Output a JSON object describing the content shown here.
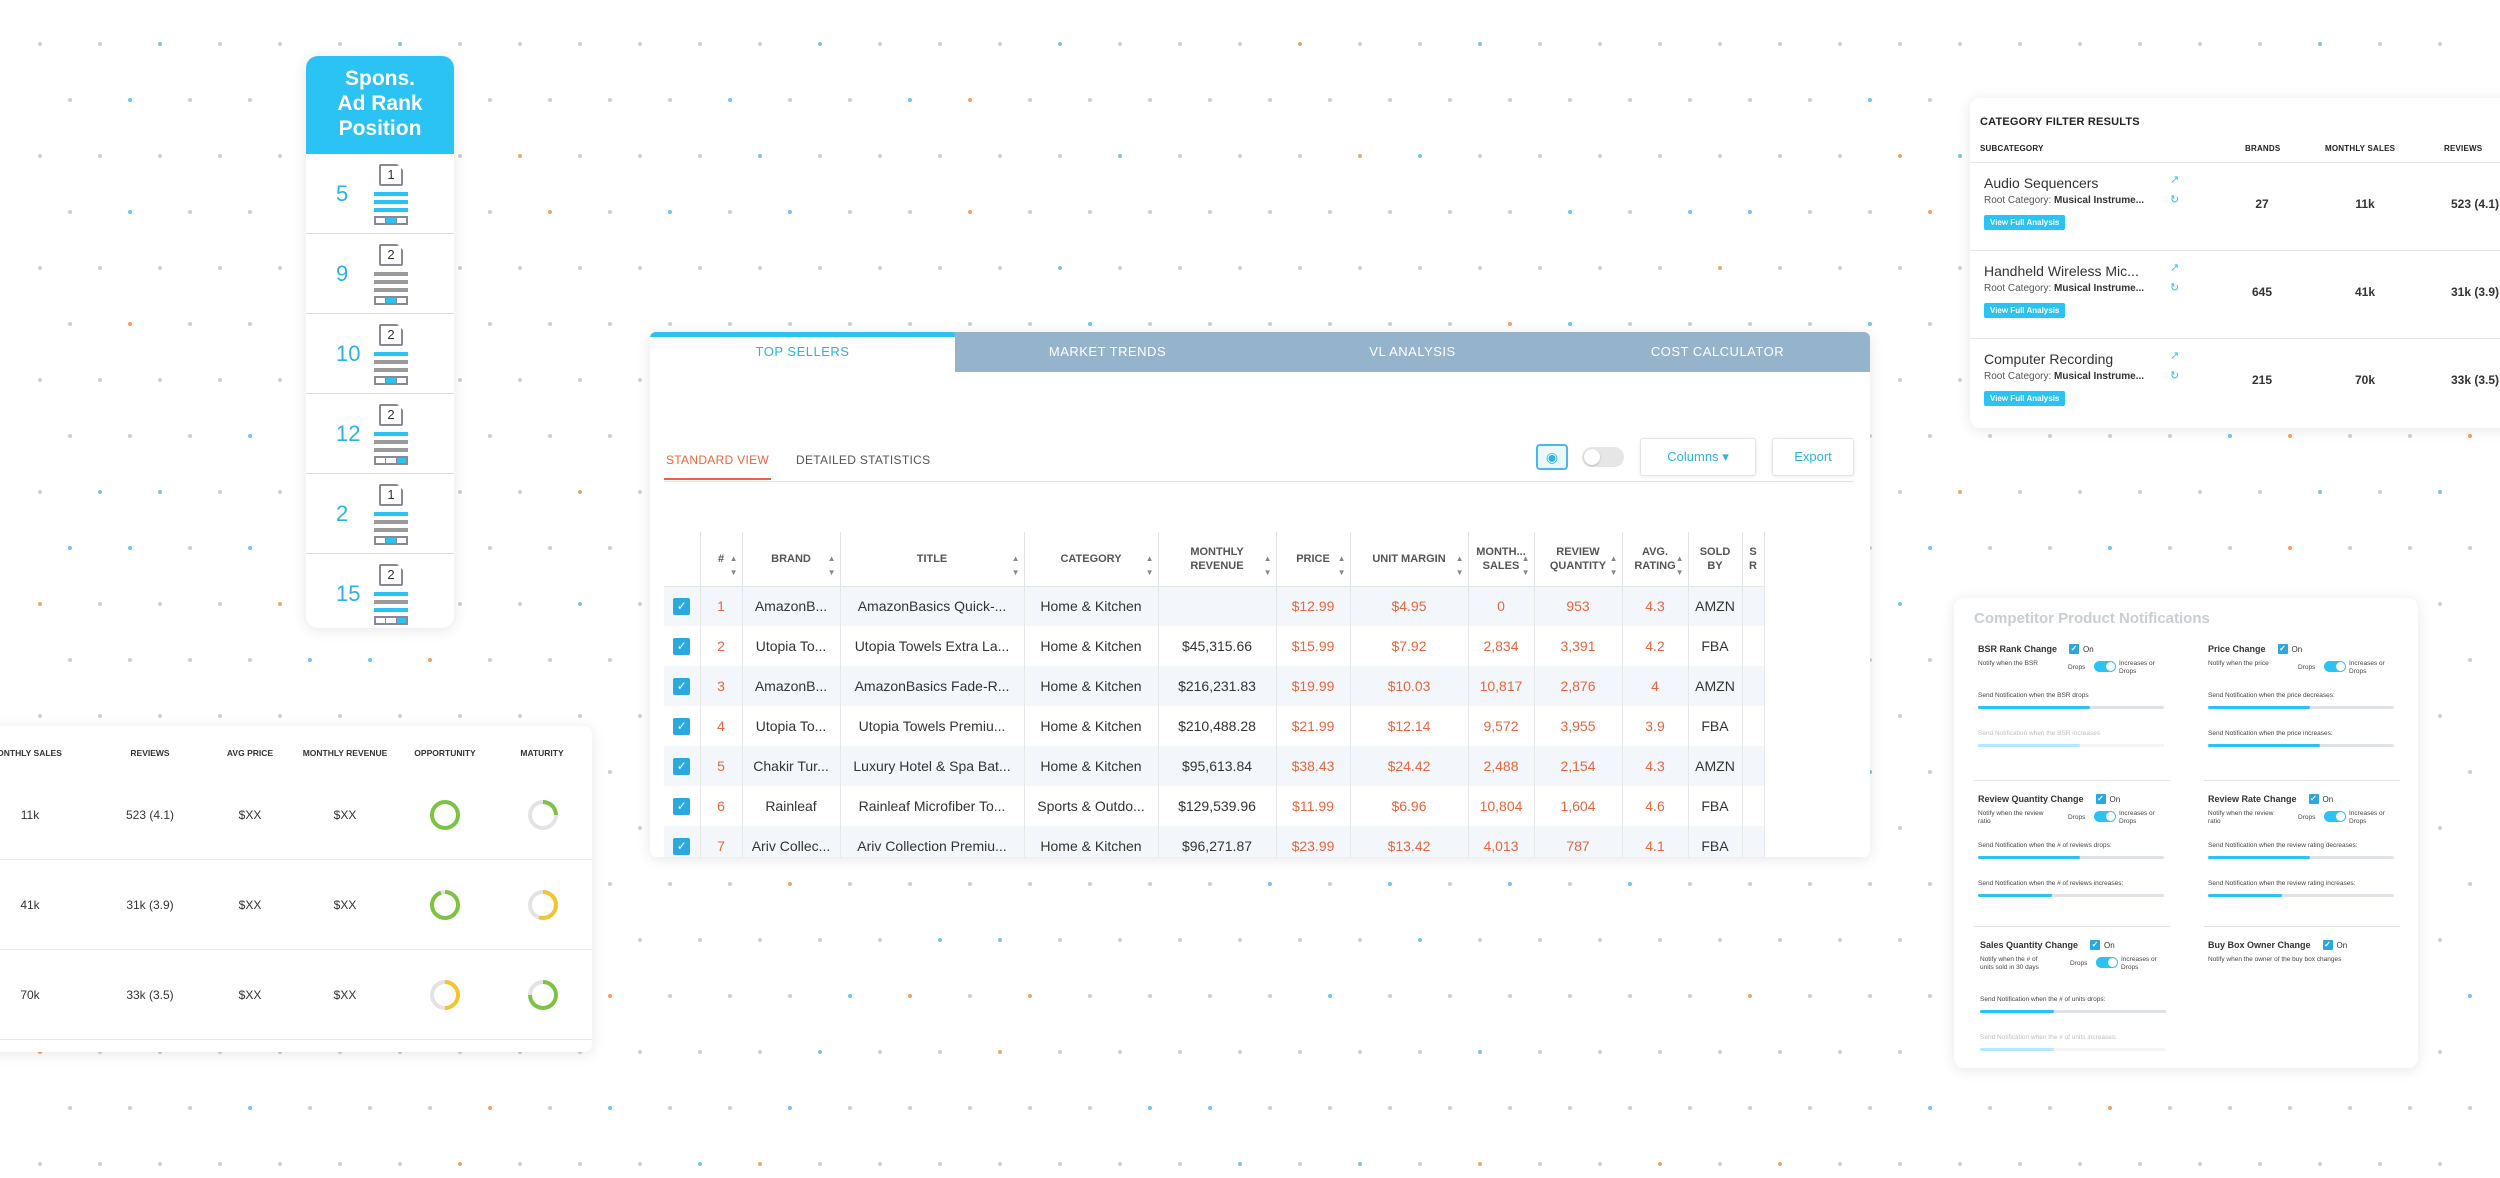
{
  "ad_rank": {
    "title_line1": "Spons.",
    "title_line2": "Ad Rank",
    "title_line3": "Position",
    "rows": [
      {
        "rank": "5",
        "page": "1",
        "lines_blue": [
          0,
          1,
          2
        ],
        "box_fill": 1
      },
      {
        "rank": "9",
        "page": "2",
        "lines_blue": [],
        "box_fill": 1
      },
      {
        "rank": "10",
        "page": "2",
        "lines_blue": [
          0
        ],
        "box_fill": 1
      },
      {
        "rank": "12",
        "page": "2",
        "lines_blue": [
          0
        ],
        "box_fill": 2
      },
      {
        "rank": "2",
        "page": "1",
        "lines_blue": [
          0
        ],
        "box_fill": 1
      },
      {
        "rank": "15",
        "page": "2",
        "lines_blue": [
          0,
          2
        ],
        "box_fill": 2
      }
    ]
  },
  "category_filter": {
    "title": "CATEGORY FILTER RESULTS",
    "headers": {
      "subcategory": "SUBCATEGORY",
      "brands": "BRANDS",
      "monthly_sales": "MONTHLY SALES",
      "reviews": "REVIEWS"
    },
    "root_label": "Root Category:",
    "button_label": "View Full Analysis",
    "rows": [
      {
        "name": "Audio Sequencers",
        "root": "Musical Instrume...",
        "brands": "27",
        "sales": "11k",
        "reviews": "523 (4.1)"
      },
      {
        "name": "Handheld Wireless Mic...",
        "root": "Musical Instrume...",
        "brands": "645",
        "sales": "41k",
        "reviews": "31k (3.9)"
      },
      {
        "name": "Computer Recording",
        "root": "Musical Instrume...",
        "brands": "215",
        "sales": "70k",
        "reviews": "33k (3.5)"
      }
    ]
  },
  "left_table": {
    "headers": {
      "monthly_sales": "MONTHLY SALES",
      "reviews": "REVIEWS",
      "avg_price": "AVG PRICE",
      "monthly_revenue": "MONTHLY REVENUE",
      "opportunity": "OPPORTUNITY",
      "maturity": "MATURITY"
    },
    "rows": [
      {
        "sales": "11k",
        "reviews": "523 (4.1)",
        "price": "$XX",
        "revenue": "$XX",
        "opportunity_color": "#7cc243",
        "maturity_color": "#7cc243",
        "opportunity_level": 1.0,
        "maturity_level": 0.25
      },
      {
        "sales": "41k",
        "reviews": "31k (3.9)",
        "price": "$XX",
        "revenue": "$XX",
        "opportunity_color": "#7cc243",
        "maturity_color": "#f4c430",
        "opportunity_level": 0.95,
        "maturity_level": 0.55
      },
      {
        "sales": "70k",
        "reviews": "33k (3.5)",
        "price": "$XX",
        "revenue": "$XX",
        "opportunity_color": "#f4c430",
        "maturity_color": "#7cc243",
        "opportunity_level": 0.5,
        "maturity_level": 0.75
      }
    ]
  },
  "main": {
    "tabs": [
      "TOP SELLERS",
      "MARKET TRENDS",
      "VL ANALYSIS",
      "COST CALCULATOR"
    ],
    "active_tab": 0,
    "subtabs": {
      "standard": "STANDARD VIEW",
      "detailed": "DETAILED STATISTICS"
    },
    "columns_label": "Columns",
    "export_label": "Export",
    "headers": [
      "#",
      "BRAND",
      "TITLE",
      "CATEGORY",
      "MONTHLY REVENUE",
      "PRICE",
      "UNIT MARGIN",
      "MONTH... SALES",
      "REVIEW QUANTITY",
      "AVG. RATING",
      "SOLD BY",
      "S R"
    ],
    "rows": [
      {
        "n": "1",
        "brand": "AmazonB...",
        "title": "AmazonBasics Quick-...",
        "category": "Home & Kitchen",
        "revenue": "",
        "price": "$12.99",
        "margin": "$4.95",
        "sales": "0",
        "reviews": "953",
        "rating": "4.3",
        "sold_by": "AMZN"
      },
      {
        "n": "2",
        "brand": "Utopia To...",
        "title": "Utopia Towels Extra La...",
        "category": "Home & Kitchen",
        "revenue": "$45,315.66",
        "price": "$15.99",
        "margin": "$7.92",
        "sales": "2,834",
        "reviews": "3,391",
        "rating": "4.2",
        "sold_by": "FBA"
      },
      {
        "n": "3",
        "brand": "AmazonB...",
        "title": "AmazonBasics Fade-R...",
        "category": "Home & Kitchen",
        "revenue": "$216,231.83",
        "price": "$19.99",
        "margin": "$10.03",
        "sales": "10,817",
        "reviews": "2,876",
        "rating": "4",
        "sold_by": "AMZN"
      },
      {
        "n": "4",
        "brand": "Utopia To...",
        "title": "Utopia Towels Premiu...",
        "category": "Home & Kitchen",
        "revenue": "$210,488.28",
        "price": "$21.99",
        "margin": "$12.14",
        "sales": "9,572",
        "reviews": "3,955",
        "rating": "3.9",
        "sold_by": "FBA"
      },
      {
        "n": "5",
        "brand": "Chakir Tur...",
        "title": "Luxury Hotel & Spa Bat...",
        "category": "Home & Kitchen",
        "revenue": "$95,613.84",
        "price": "$38.43",
        "margin": "$24.42",
        "sales": "2,488",
        "reviews": "2,154",
        "rating": "4.3",
        "sold_by": "AMZN"
      },
      {
        "n": "6",
        "brand": "Rainleaf",
        "title": "Rainleaf Microfiber To...",
        "category": "Sports & Outdo...",
        "revenue": "$129,539.96",
        "price": "$11.99",
        "margin": "$6.96",
        "sales": "10,804",
        "reviews": "1,604",
        "rating": "4.6",
        "sold_by": "FBA"
      },
      {
        "n": "7",
        "brand": "Ariv Collec...",
        "title": "Ariv Collection Premiu...",
        "category": "Home & Kitchen",
        "revenue": "$96,271.87",
        "price": "$23.99",
        "margin": "$13.42",
        "sales": "4,013",
        "reviews": "787",
        "rating": "4.1",
        "sold_by": "FBA"
      }
    ]
  },
  "competitor": {
    "title": "Competitor Product Notifications",
    "on_label": "On",
    "drops": "Drops",
    "increases_or_drops": "Increases or Drops",
    "sections": {
      "bsr": {
        "title": "BSR Rank Change",
        "notify": "Notify when the BSR",
        "s1": "Send Notification when the BSR drops",
        "s2": "Send Notification when the BSR increases"
      },
      "price": {
        "title": "Price Change",
        "notify": "Notify when the price",
        "s1": "Send Notification when the price decreases:",
        "s2": "Send Notification when the price increases:"
      },
      "review_qty": {
        "title": "Review Quantity Change",
        "notify": "Notify when the review ratio",
        "s1": "Send Notification when the # of reviews drops:",
        "s2": "Send Notification when the # of reviews increases:"
      },
      "review_rate": {
        "title": "Review Rate Change",
        "notify": "Notify when the review ratio",
        "s1": "Send Notification when the review rating decreases:",
        "s2": "Send Notification when the review rating increases:"
      },
      "sales_qty": {
        "title": "Sales Quantity Change",
        "notify": "Notify when the # of units sold in 30 days",
        "s1": "Send Notification when the # of units drops:",
        "s2": "Send Notification when the # of units increases:"
      },
      "buybox": {
        "title": "Buy Box Owner Change",
        "notify": "Notify when the owner of the buy box changes"
      }
    }
  }
}
